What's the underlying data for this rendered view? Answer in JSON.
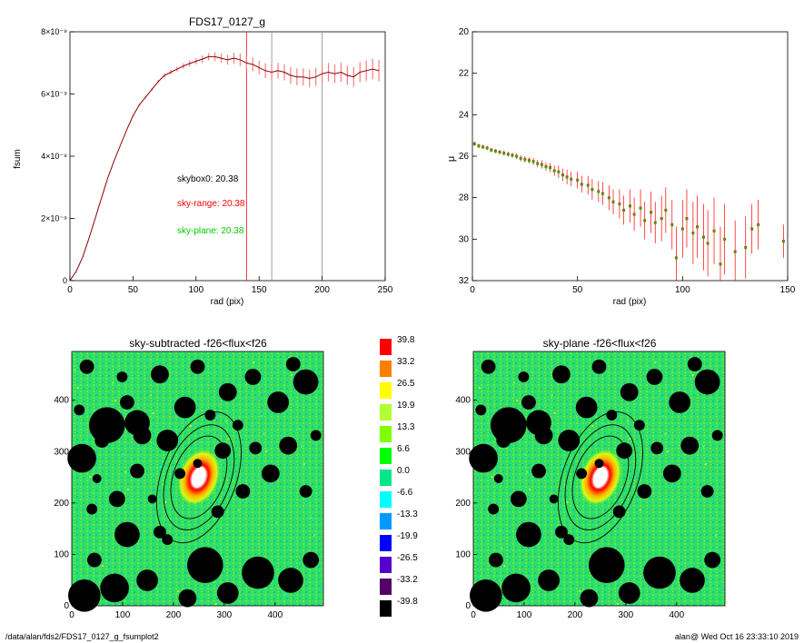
{
  "footer": {
    "left": "/data/alan/fds2/FDS17_0127_g_fsumplot2",
    "right": "alan@  Wed Oct 16 23:33:10 2019"
  },
  "colors": {
    "fsum_curve": "#8b0000",
    "fsum_errorbar": "#f08080",
    "sky_range": "#ff0000",
    "sky_plane": "#00cc00",
    "ring_line": "#888888",
    "mu_points": "#8b6914"
  },
  "chart_data": [
    {
      "type": "line",
      "title": "FDS17_0127_g",
      "xlabel": "rad (pix)",
      "ylabel": "fsum",
      "xlim": [
        0,
        250
      ],
      "ylim": [
        0,
        8e-09
      ],
      "x_ticks": [
        0,
        50,
        100,
        150,
        200,
        250
      ],
      "y_ticks": [
        {
          "value": 0,
          "label": "0"
        },
        {
          "value": 2e-09,
          "label": "2×10⁻⁹"
        },
        {
          "value": 4e-09,
          "label": "4×10⁻⁹"
        },
        {
          "value": 6e-09,
          "label": "6×10⁻⁹"
        },
        {
          "value": 8e-09,
          "label": "8×10⁻⁹"
        }
      ],
      "vertical_lines": [
        {
          "x": 140,
          "color": "#ff0000"
        },
        {
          "x": 160,
          "color": "#888888"
        },
        {
          "x": 200,
          "color": "#888888"
        }
      ],
      "annotations": [
        {
          "text": "skybox0: 20.38",
          "color": "#000000"
        },
        {
          "text": "sky-range: 20.38",
          "color": "#ff0000"
        },
        {
          "text": "sky-plane: 20.38",
          "color": "#00cc00"
        }
      ],
      "series": [
        {
          "x": [
            0,
            5,
            10,
            15,
            20,
            25,
            30,
            35,
            40,
            45,
            50,
            55,
            60,
            65,
            70,
            75,
            80,
            85,
            90,
            95,
            100,
            105,
            110,
            115,
            120,
            125,
            130,
            135,
            140,
            145,
            150,
            155,
            160,
            165,
            170,
            175,
            180,
            185,
            190,
            195,
            200,
            205,
            210,
            215,
            220,
            225,
            230,
            235,
            240,
            245
          ],
          "y": [
            0,
            3e-10,
            7.5e-10,
            1.35e-09,
            2e-09,
            2.65e-09,
            3.3e-09,
            3.85e-09,
            4.35e-09,
            4.85e-09,
            5.3e-09,
            5.65e-09,
            5.9e-09,
            6.15e-09,
            6.4e-09,
            6.6e-09,
            6.7e-09,
            6.8e-09,
            6.9e-09,
            6.98e-09,
            7.05e-09,
            7.12e-09,
            7.2e-09,
            7.2e-09,
            7.15e-09,
            7.1e-09,
            7.15e-09,
            7.1e-09,
            7e-09,
            6.95e-09,
            6.85e-09,
            6.75e-09,
            6.7e-09,
            6.75e-09,
            6.7e-09,
            6.6e-09,
            6.55e-09,
            6.55e-09,
            6.5e-09,
            6.55e-09,
            6.65e-09,
            6.7e-09,
            6.65e-09,
            6.7e-09,
            6.6e-09,
            6.55e-09,
            6.7e-09,
            6.75e-09,
            6.8e-09,
            6.75e-09
          ],
          "err": [
            0,
            0,
            0,
            0,
            0,
            0,
            0,
            0,
            0,
            0,
            2e-11,
            3e-11,
            4e-11,
            5e-11,
            5e-11,
            6e-11,
            7e-11,
            8e-11,
            9e-11,
            1e-10,
            1e-10,
            1.2e-10,
            1.2e-10,
            1.4e-10,
            1.5e-10,
            1.6e-10,
            1.8e-10,
            2e-10,
            2e-10,
            2.2e-10,
            2.2e-10,
            2.4e-10,
            2.5e-10,
            2.5e-10,
            2.6e-10,
            2.7e-10,
            2.7e-10,
            2.8e-10,
            2.8e-10,
            2.9e-10,
            2.9e-10,
            3e-10,
            3e-10,
            3.1e-10,
            3.1e-10,
            3.2e-10,
            3.2e-10,
            3.3e-10,
            3.3e-10,
            3.4e-10
          ]
        }
      ]
    },
    {
      "type": "scatter",
      "title": "",
      "xlabel": "rad (pix)",
      "ylabel": "μ",
      "xlim": [
        0,
        150
      ],
      "ylim": [
        32,
        20
      ],
      "x_ticks": [
        0,
        50,
        100,
        150
      ],
      "y_ticks": [
        20,
        22,
        24,
        26,
        28,
        30,
        32
      ],
      "series": [
        {
          "x": [
            1,
            3,
            5,
            7,
            9,
            11,
            13,
            15,
            17,
            19,
            21,
            23,
            25,
            27,
            29,
            31,
            33,
            35,
            37,
            39,
            41,
            43,
            45,
            47,
            50,
            52,
            55,
            57,
            60,
            62,
            65,
            67,
            70,
            72,
            75,
            77,
            80,
            82,
            85,
            87,
            90,
            92,
            95,
            97,
            100,
            102,
            105,
            107,
            110,
            112,
            115,
            118,
            120,
            125,
            130,
            133,
            136,
            148
          ],
          "y": [
            25.4,
            25.5,
            25.55,
            25.6,
            25.7,
            25.75,
            25.8,
            25.85,
            25.9,
            25.95,
            26.0,
            26.1,
            26.15,
            26.2,
            26.25,
            26.35,
            26.4,
            26.5,
            26.55,
            26.7,
            26.75,
            26.9,
            27.0,
            27.1,
            27.15,
            27.35,
            27.4,
            27.6,
            27.7,
            27.8,
            28.0,
            28.2,
            28.3,
            28.6,
            28.4,
            28.8,
            28.5,
            29.1,
            28.7,
            29.2,
            29.0,
            28.6,
            29.3,
            30.9,
            29.5,
            29.0,
            29.7,
            29.4,
            29.9,
            30.2,
            29.6,
            31.2,
            30.0,
            30.6,
            30.4,
            29.5,
            29.3,
            30.1
          ],
          "err": [
            0.1,
            0.1,
            0.1,
            0.1,
            0.1,
            0.1,
            0.1,
            0.12,
            0.12,
            0.12,
            0.14,
            0.14,
            0.15,
            0.15,
            0.16,
            0.18,
            0.2,
            0.2,
            0.22,
            0.25,
            0.3,
            0.3,
            0.35,
            0.35,
            0.4,
            0.4,
            0.45,
            0.5,
            0.5,
            0.55,
            0.6,
            0.6,
            0.7,
            0.7,
            0.8,
            0.8,
            0.9,
            0.9,
            1.0,
            1.0,
            1.1,
            1.1,
            1.2,
            1.5,
            1.4,
            1.4,
            1.5,
            1.5,
            1.6,
            1.6,
            1.6,
            1.8,
            1.7,
            1.5,
            1.5,
            1.2,
            1.2,
            0.8
          ]
        }
      ]
    },
    {
      "type": "heatmap",
      "title": "sky-subtracted -f26<flux<f26",
      "xlim": [
        0,
        495
      ],
      "ylim": [
        0,
        495
      ],
      "x_ticks": [
        0,
        100,
        200,
        300,
        400
      ],
      "y_ticks": [
        0,
        100,
        200,
        300,
        400
      ],
      "center": [
        250,
        250
      ],
      "ellipses": [
        {
          "a": 110,
          "b": 80,
          "angle": 20
        },
        {
          "a": 140,
          "b": 100,
          "angle": 20
        },
        {
          "a": 175,
          "b": 118,
          "angle": 20
        }
      ]
    },
    {
      "type": "heatmap",
      "title": "sky-plane -f26<flux<f26",
      "xlim": [
        0,
        495
      ],
      "ylim": [
        0,
        495
      ],
      "x_ticks": [
        0,
        100,
        200,
        300,
        400
      ],
      "y_ticks": [
        0,
        100,
        200,
        300,
        400
      ],
      "center": [
        250,
        250
      ],
      "ellipses": [
        {
          "a": 110,
          "b": 80,
          "angle": 20
        },
        {
          "a": 140,
          "b": 100,
          "angle": 20
        },
        {
          "a": 175,
          "b": 118,
          "angle": 20
        }
      ]
    },
    {
      "type": "colorbar",
      "levels": [
        {
          "label": "39.8",
          "color": "#ff0000"
        },
        {
          "label": "33.2",
          "color": "#ff7f00"
        },
        {
          "label": "26.5",
          "color": "#ffff00"
        },
        {
          "label": "19.9",
          "color": "#b2ff33"
        },
        {
          "label": "13.3",
          "color": "#7fff00"
        },
        {
          "label": "6.6",
          "color": "#00ff00"
        },
        {
          "label": "0.0",
          "color": "#00e68a"
        },
        {
          "label": "-6.6",
          "color": "#00ffff"
        },
        {
          "label": "-13.3",
          "color": "#0099ff"
        },
        {
          "label": "-19.9",
          "color": "#0000ff"
        },
        {
          "label": "-26.5",
          "color": "#5500cc"
        },
        {
          "label": "-33.2",
          "color": "#550066"
        },
        {
          "label": "-39.8",
          "color": "#000000"
        }
      ]
    }
  ]
}
